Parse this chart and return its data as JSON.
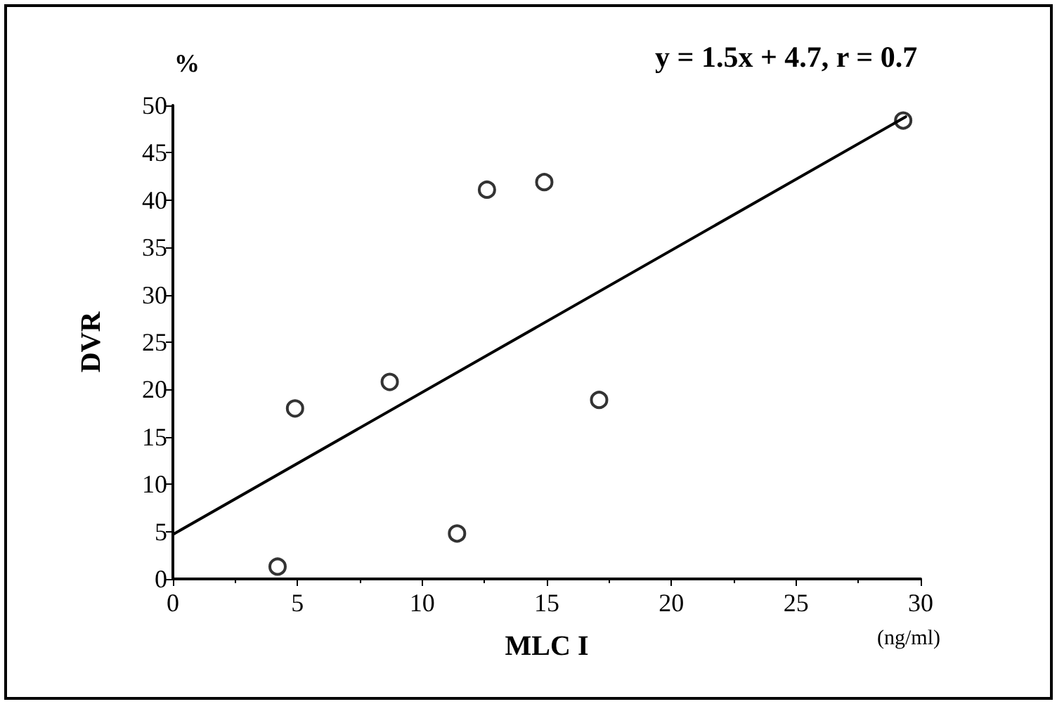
{
  "chart_data": {
    "type": "scatter",
    "xlabel": "MLC I",
    "ylabel": "DVR",
    "annotations": [
      "%",
      "y = 1.5x + 4.7, r = 0.7",
      "(ng/ml)"
    ],
    "xlim": [
      0,
      30
    ],
    "xticks": [
      0,
      5,
      10,
      15,
      20,
      25,
      30
    ],
    "ylim": [
      0,
      50
    ],
    "yticks": [
      0,
      5,
      10,
      15,
      20,
      25,
      30,
      35,
      40,
      45,
      50
    ],
    "grid": false,
    "series": [
      {
        "color": "#000000",
        "marker": "circle",
        "x": [
          4.2,
          4.9,
          8.7,
          11.4,
          12.6,
          14.9,
          17.1,
          29.3
        ],
        "values": [
          1.3,
          18,
          20.8,
          4.8,
          41.1,
          41.9,
          18.9,
          48.4
        ]
      },
      {
        "type": "line",
        "color": "#000000",
        "line_style": "solid",
        "x": [
          0,
          29.4
        ],
        "values": [
          4.7,
          48.8
        ]
      }
    ]
  }
}
